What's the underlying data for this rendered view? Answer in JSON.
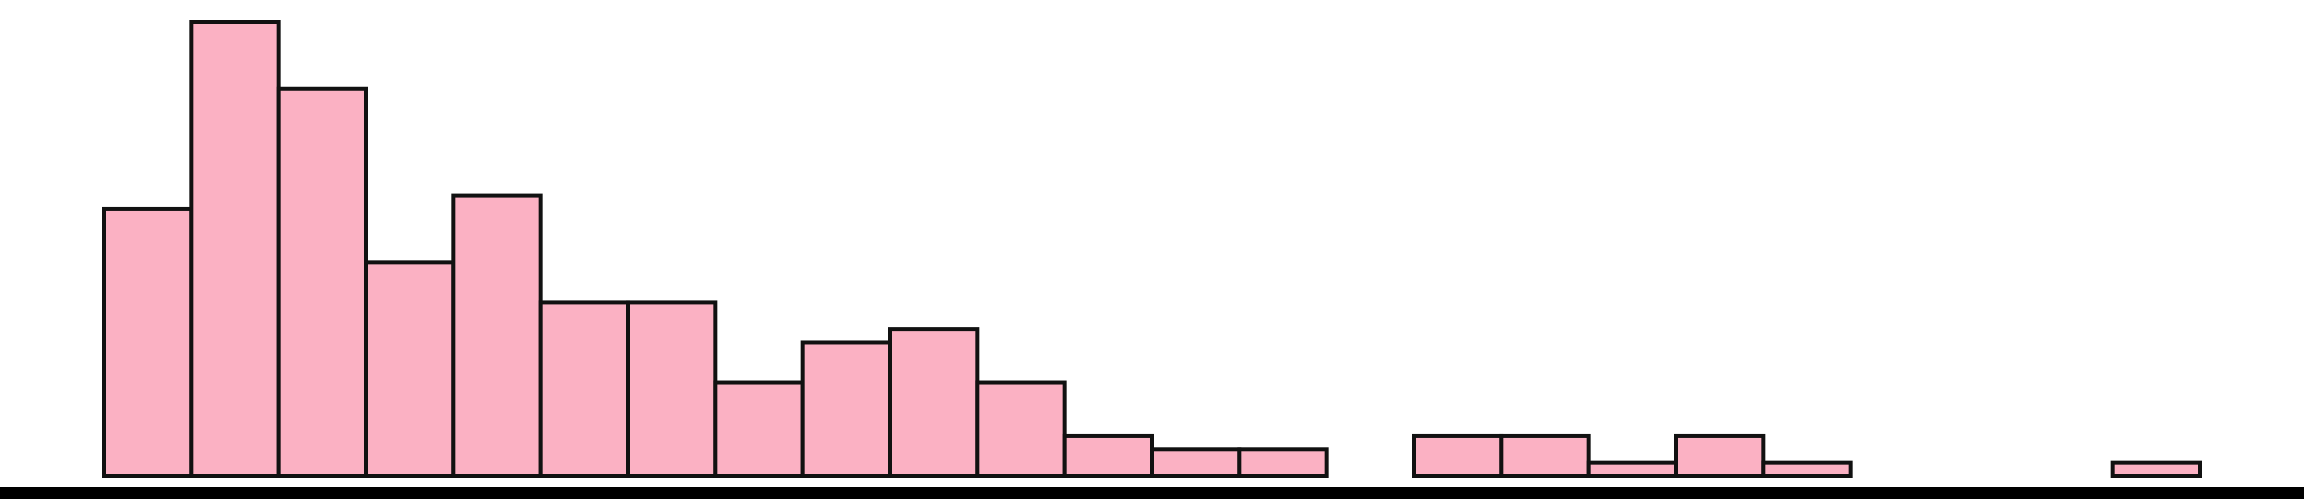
{
  "chart_data": {
    "type": "bar",
    "title": "",
    "xlabel": "",
    "ylabel": "",
    "bins": 24,
    "values": [
      20,
      34,
      29,
      16,
      21,
      13,
      13,
      7,
      10,
      11,
      7,
      3,
      2,
      2,
      0,
      3,
      3,
      1,
      3,
      1,
      0,
      0,
      0,
      1
    ],
    "ylim": [
      0,
      34
    ],
    "grid": false,
    "legend": "none",
    "colors": {
      "bar_fill": "#FBB1C3",
      "bar_stroke": "#111111",
      "axis": "#000000",
      "background": "#FFFFFF"
    }
  }
}
